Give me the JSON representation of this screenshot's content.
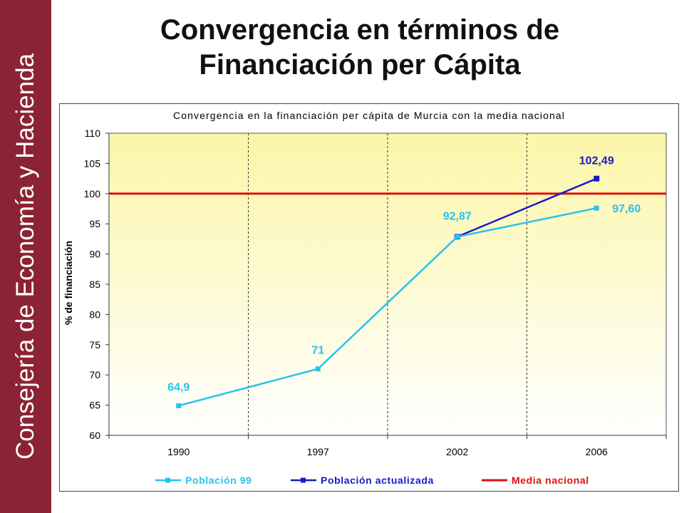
{
  "sidebar": {
    "label": "Consejería de Economía y Hacienda"
  },
  "slide": {
    "title_line1": "Convergencia en términos de",
    "title_line2": "Financiación per Cápita"
  },
  "colors": {
    "sidebar_bg": "#8b2335",
    "plot_bg_top": "#fbf6a8",
    "plot_bg_bottom": "#ffffff",
    "poblacion_99": "#28c2f0",
    "poblacion_actualizada": "#1a1ac8",
    "media_nacional": "#e01010"
  },
  "chart_data": {
    "type": "line",
    "title": "Convergencia en la financiación per cápita de Murcia con la media nacional",
    "xlabel": "",
    "ylabel": "% de financiación",
    "categories": [
      "1990",
      "1997",
      "2002",
      "2006"
    ],
    "ylim": [
      60,
      110
    ],
    "yticks": [
      "60",
      "65",
      "70",
      "75",
      "80",
      "85",
      "90",
      "95",
      "100",
      "105",
      "110"
    ],
    "grid": "vertical dashed",
    "legend_position": "bottom",
    "series": [
      {
        "name": "Población 99",
        "values": [
          64.9,
          71,
          92.87,
          97.6
        ],
        "labels": [
          "64,9",
          "71",
          "92,87",
          "97,60"
        ],
        "color": "#28c2f0"
      },
      {
        "name": "Población actualizada",
        "values": [
          null,
          null,
          92.87,
          102.49
        ],
        "labels": [
          "",
          "",
          "",
          "102,49"
        ],
        "color": "#1a1ac8"
      },
      {
        "name": "Media nacional",
        "values": [
          100,
          100,
          100,
          100
        ],
        "color": "#e01010"
      }
    ]
  }
}
